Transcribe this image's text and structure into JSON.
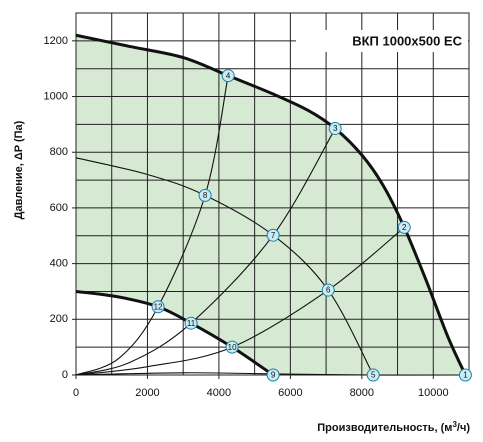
{
  "chart_data": {
    "type": "fan-performance",
    "title": "ВКП  1000x500 EC",
    "x_label": "Производительность, (м",
    "x_label_sup": "3",
    "x_label_end": "/ч)",
    "y_label": "Давление, ΔP (Па)",
    "xlim": [
      0,
      11000
    ],
    "ylim": [
      0,
      1300
    ],
    "xticks": [
      0,
      2000,
      4000,
      6000,
      8000,
      10000
    ],
    "yticks": [
      0,
      200,
      400,
      600,
      800,
      1000,
      1200
    ],
    "grid_x": [
      1000,
      2000,
      3000,
      4000,
      5000,
      6000,
      7000,
      8000,
      9000,
      10000
    ],
    "grid_y": [
      100,
      200,
      300,
      400,
      500,
      600,
      700,
      800,
      900,
      1000,
      1100,
      1200
    ],
    "area_color": "#d6e9d2",
    "curves": [
      {
        "kind": "max",
        "x": [
          0,
          1500,
          3000,
          4258,
          5500,
          6500,
          7255,
          8000,
          8600,
          9188,
          9800,
          10400,
          10900
        ],
        "y": [
          1220,
          1180,
          1140,
          1075,
          1010,
          950,
          885,
          790,
          680,
          530,
          340,
          140,
          0
        ]
      },
      {
        "kind": "min",
        "x": [
          0,
          1200,
          2297,
          3221,
          4370,
          5518
        ],
        "y": [
          300,
          280,
          245,
          186,
          100,
          0
        ]
      },
      {
        "kind": "mid",
        "x": [
          0,
          2000,
          3613,
          5518,
          7059,
          8319
        ],
        "y": [
          780,
          720,
          645,
          502,
          305,
          0
        ]
      },
      {
        "kind": "system",
        "x": [
          0,
          1200,
          2297,
          3613,
          4258
        ],
        "y": [
          0,
          60,
          245,
          645,
          1075
        ]
      },
      {
        "kind": "system",
        "x": [
          0,
          1500,
          3221,
          5518,
          7255
        ],
        "y": [
          0,
          45,
          186,
          502,
          885
        ]
      },
      {
        "kind": "system",
        "x": [
          0,
          2000,
          4370,
          7059,
          9188
        ],
        "y": [
          0,
          30,
          100,
          305,
          530
        ]
      },
      {
        "kind": "system",
        "x": [
          0,
          3000,
          5518,
          8319,
          10900
        ],
        "y": [
          0,
          8,
          4,
          0,
          0
        ]
      }
    ],
    "points": [
      {
        "label": "1",
        "x": 10900,
        "y": 0
      },
      {
        "label": "2",
        "x": 9188,
        "y": 530
      },
      {
        "label": "3",
        "x": 7255,
        "y": 885
      },
      {
        "label": "4",
        "x": 4258,
        "y": 1075
      },
      {
        "label": "5",
        "x": 8319,
        "y": 0
      },
      {
        "label": "6",
        "x": 7059,
        "y": 305
      },
      {
        "label": "7",
        "x": 5518,
        "y": 502
      },
      {
        "label": "8",
        "x": 3613,
        "y": 645
      },
      {
        "label": "9",
        "x": 5518,
        "y": 0
      },
      {
        "label": "10",
        "x": 4370,
        "y": 100
      },
      {
        "label": "11",
        "x": 3221,
        "y": 186
      },
      {
        "label": "12",
        "x": 2297,
        "y": 245
      }
    ]
  }
}
